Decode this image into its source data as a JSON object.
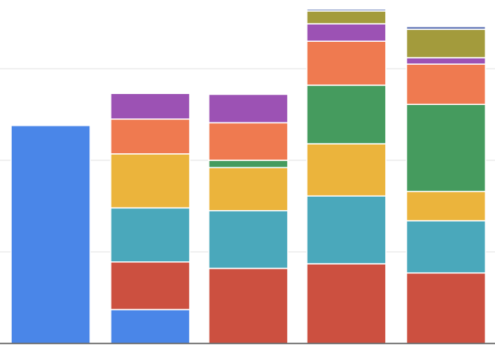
{
  "chart_data": {
    "type": "bar",
    "stacked": true,
    "title": "",
    "xlabel": "",
    "ylabel": "",
    "ylim": [
      0,
      3.75
    ],
    "gridlines": [
      1,
      2,
      3
    ],
    "grid": true,
    "legend": "none",
    "categories": [
      "",
      "",
      "",
      "",
      ""
    ],
    "series": [
      {
        "color": "#4a86e8",
        "values": [
          2.38,
          0.37,
          0,
          0,
          0
        ]
      },
      {
        "color": "#cc5040",
        "values": [
          0,
          0.52,
          0.82,
          0.87,
          0.77
        ]
      },
      {
        "color": "#4aa8bb",
        "values": [
          0,
          0.59,
          0.63,
          0.74,
          0.57
        ]
      },
      {
        "color": "#ebb43c",
        "values": [
          0,
          0.59,
          0.47,
          0.57,
          0.32
        ]
      },
      {
        "color": "#459b5e",
        "values": [
          0,
          0,
          0.08,
          0.64,
          0.95
        ]
      },
      {
        "color": "#ef7a50",
        "values": [
          0,
          0.38,
          0.41,
          0.48,
          0.44
        ]
      },
      {
        "color": "#9c52b4",
        "values": [
          0,
          0.28,
          0.31,
          0.19,
          0.07
        ]
      },
      {
        "color": "#a39b3c",
        "values": [
          0,
          0,
          0,
          0.14,
          0.31
        ]
      },
      {
        "color": "#5a6fb3",
        "values": [
          0,
          0,
          0,
          0.02,
          0.03
        ]
      }
    ]
  },
  "style": {
    "grid_color": "#e3e3e3",
    "axis_color": "#555555",
    "separator_color": "#ffffff"
  }
}
